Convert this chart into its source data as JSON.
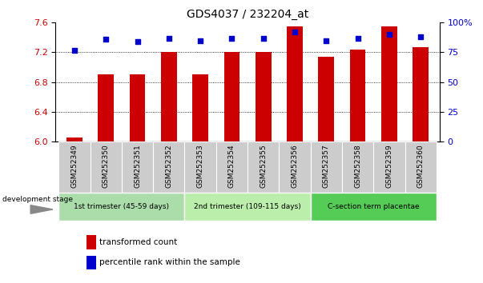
{
  "title": "GDS4037 / 232204_at",
  "samples": [
    "GSM252349",
    "GSM252350",
    "GSM252351",
    "GSM252352",
    "GSM252353",
    "GSM252354",
    "GSM252355",
    "GSM252356",
    "GSM252357",
    "GSM252358",
    "GSM252359",
    "GSM252360"
  ],
  "bar_values": [
    6.05,
    6.9,
    6.9,
    7.21,
    6.9,
    7.21,
    7.2,
    7.55,
    7.14,
    7.24,
    7.55,
    7.27
  ],
  "percentile_values": [
    77,
    86,
    84,
    87,
    85,
    87,
    87,
    92,
    85,
    87,
    90,
    88
  ],
  "bar_color": "#cc0000",
  "percentile_color": "#0000cc",
  "ylim_left": [
    6.0,
    7.6
  ],
  "ylim_right": [
    0,
    100
  ],
  "yticks_left": [
    6.0,
    6.4,
    6.8,
    7.2,
    7.6
  ],
  "yticks_right": [
    0,
    25,
    50,
    75,
    100
  ],
  "ytick_labels_right": [
    "0",
    "25",
    "50",
    "75",
    "100%"
  ],
  "grid_values": [
    6.4,
    6.8,
    7.2
  ],
  "groups": [
    {
      "label": "1st trimester (45-59 days)",
      "start": 0,
      "end": 4,
      "color": "#aaddaa"
    },
    {
      "label": "2nd trimester (109-115 days)",
      "start": 4,
      "end": 8,
      "color": "#bbeeaa"
    },
    {
      "label": "C-section term placentae",
      "start": 8,
      "end": 12,
      "color": "#55cc55"
    }
  ],
  "dev_stage_label": "development stage",
  "legend_bar_label": "transformed count",
  "legend_pct_label": "percentile rank within the sample",
  "bar_width": 0.5,
  "bg_color": "#ffffff",
  "plot_bg_color": "#ffffff",
  "tick_label_color_left": "#cc0000",
  "tick_label_color_right": "#0000cc",
  "group_box_facecolor": "#cccccc"
}
